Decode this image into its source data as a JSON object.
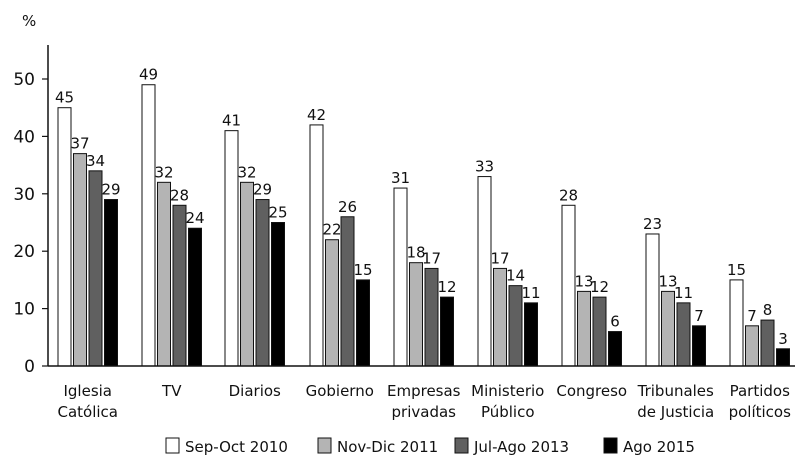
{
  "chart_data": {
    "type": "bar",
    "ylabel": "%",
    "ylim": [
      0,
      50
    ],
    "yticks": [
      "0",
      "10",
      "20",
      "30",
      "40",
      "50"
    ],
    "categories": [
      [
        "Iglesia",
        "Católica"
      ],
      [
        "TV"
      ],
      [
        "Diarios"
      ],
      [
        "Gobierno"
      ],
      [
        "Empresas",
        "privadas"
      ],
      [
        "Ministerio",
        "Público"
      ],
      [
        "Congreso"
      ],
      [
        "Tribunales",
        "de Justicia"
      ],
      [
        "Partidos",
        "políticos"
      ]
    ],
    "series": [
      {
        "name": "Sep-Oct 2010",
        "color": "#ffffff",
        "values": [
          45,
          49,
          41,
          42,
          31,
          33,
          28,
          23,
          15
        ]
      },
      {
        "name": "Nov-Dic 2011",
        "color": "#b4b4b4",
        "values": [
          37,
          32,
          32,
          22,
          18,
          17,
          13,
          13,
          7
        ]
      },
      {
        "name": "Jul-Ago 2013",
        "color": "#606060",
        "values": [
          34,
          28,
          29,
          26,
          17,
          14,
          12,
          11,
          8
        ]
      },
      {
        "name": "Ago 2015",
        "color": "#000000",
        "values": [
          29,
          24,
          25,
          15,
          12,
          11,
          6,
          7,
          3
        ]
      }
    ],
    "legend_position": "bottom",
    "grid": false
  }
}
